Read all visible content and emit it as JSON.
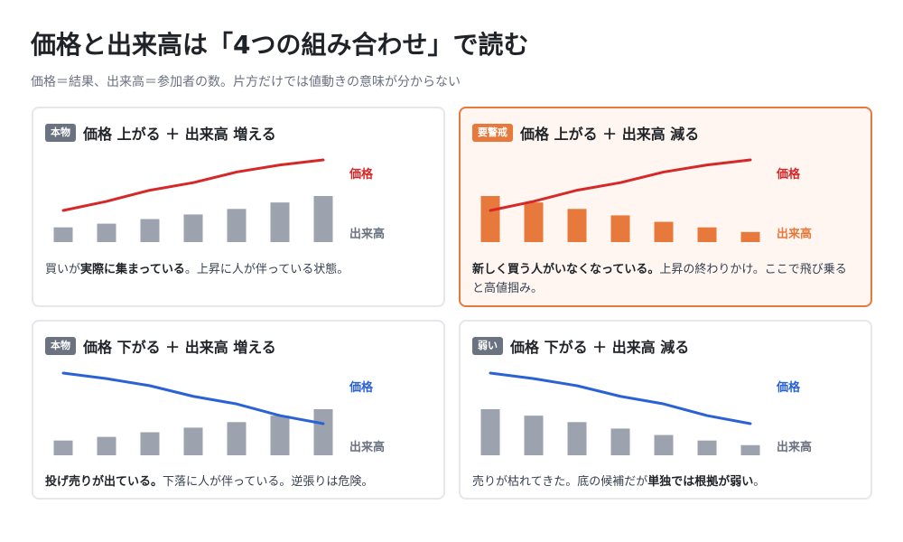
{
  "page": {
    "title": "価格と出来高は「4つの組み合わせ」で読む",
    "subtitle": "価格＝結果、出来高＝参加者の数。片方だけでは値動きの意味が分からない"
  },
  "colors": {
    "price_up": "#d62828",
    "price_down": "#2a62d6",
    "volume_bar": "#9ca3af",
    "volume_bar_warn": "#e8793d",
    "warn_accent": "#e8793d",
    "badge_gray": "#6b7280"
  },
  "cards": [
    {
      "badge": "本物",
      "heading": "価格 上がる ＋ 出来高 増える",
      "price_label": "価格",
      "volume_label": "出来高",
      "desc": {
        "pre": "買いが",
        "bold": "実際に集まっている",
        "post": "。上昇に人が伴っている状態。"
      }
    },
    {
      "badge": "要警戒",
      "heading": "価格 上がる ＋ 出来高 減る",
      "price_label": "価格",
      "volume_label": "出来高",
      "desc": {
        "pre": "",
        "bold": "新しく買う人がいなくなっている。",
        "post": "上昇の終わりかけ。ここで飛び乗ると高値掴み。"
      }
    },
    {
      "badge": "本物",
      "heading": "価格 下がる ＋ 出来高 増える",
      "price_label": "価格",
      "volume_label": "出来高",
      "desc": {
        "pre": "",
        "bold": "投げ売りが出ている。",
        "post": "下落に人が伴っている。逆張りは危険。"
      }
    },
    {
      "badge": "弱い",
      "heading": "価格 下がる ＋ 出来高 減る",
      "price_label": "価格",
      "volume_label": "出来高",
      "desc": {
        "pre": "売りが枯れてきた。底の候補だが",
        "bold": "単独では根拠が弱い",
        "post": "。"
      }
    }
  ],
  "chart_data": [
    {
      "type": "line",
      "series": [
        {
          "kind": "price",
          "trend": "up",
          "values": [
            0,
            18,
            40,
            55,
            76,
            90,
            100
          ]
        },
        {
          "kind": "volume",
          "trend": "up",
          "values": [
            32,
            40,
            50,
            60,
            72,
            86,
            100
          ]
        }
      ]
    },
    {
      "type": "line",
      "series": [
        {
          "kind": "price",
          "trend": "up",
          "values": [
            0,
            18,
            40,
            55,
            76,
            90,
            100
          ]
        },
        {
          "kind": "volume",
          "trend": "down",
          "values": [
            100,
            86,
            72,
            58,
            44,
            32,
            22
          ]
        }
      ]
    },
    {
      "type": "line",
      "series": [
        {
          "kind": "price",
          "trend": "down",
          "values": [
            100,
            89,
            75,
            54,
            39,
            16,
            0
          ]
        },
        {
          "kind": "volume",
          "trend": "up",
          "values": [
            32,
            40,
            50,
            60,
            72,
            86,
            100
          ]
        }
      ]
    },
    {
      "type": "line",
      "series": [
        {
          "kind": "price",
          "trend": "down",
          "values": [
            100,
            89,
            75,
            54,
            39,
            16,
            0
          ]
        },
        {
          "kind": "volume",
          "trend": "down",
          "values": [
            100,
            86,
            72,
            58,
            44,
            32,
            22
          ]
        }
      ]
    }
  ]
}
